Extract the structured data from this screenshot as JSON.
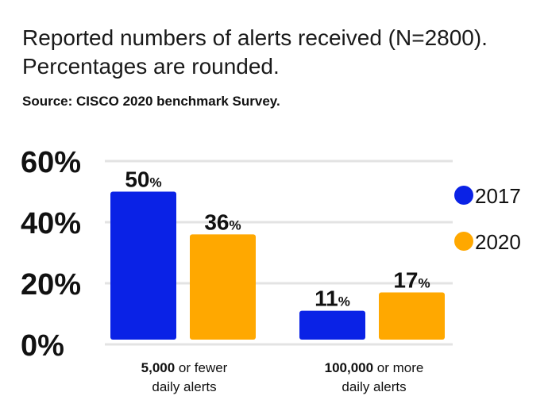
{
  "header": {
    "title_line1": "Reported numbers of alerts received (N=2800).",
    "title_line2": "Percentages are rounded.",
    "source": "Source: CISCO 2020 benchmark Survey."
  },
  "chart_data": {
    "type": "bar",
    "categories": [
      {
        "bold": "5,000",
        "rest": " or fewer",
        "line2": "daily alerts"
      },
      {
        "bold": "100,000",
        "rest": " or more",
        "line2": "daily alerts"
      }
    ],
    "series": [
      {
        "name": "2017",
        "color": "#0a22e6",
        "values": [
          50,
          11
        ]
      },
      {
        "name": "2020",
        "color": "#ffa800",
        "values": [
          36,
          17
        ]
      }
    ],
    "data_label_suffix": "%",
    "ylim": [
      0,
      60
    ],
    "yticks": [
      "0%",
      "20%",
      "40%",
      "60%"
    ],
    "grid": true,
    "grid_color": "#e3e3e3",
    "legend_position": "right"
  }
}
